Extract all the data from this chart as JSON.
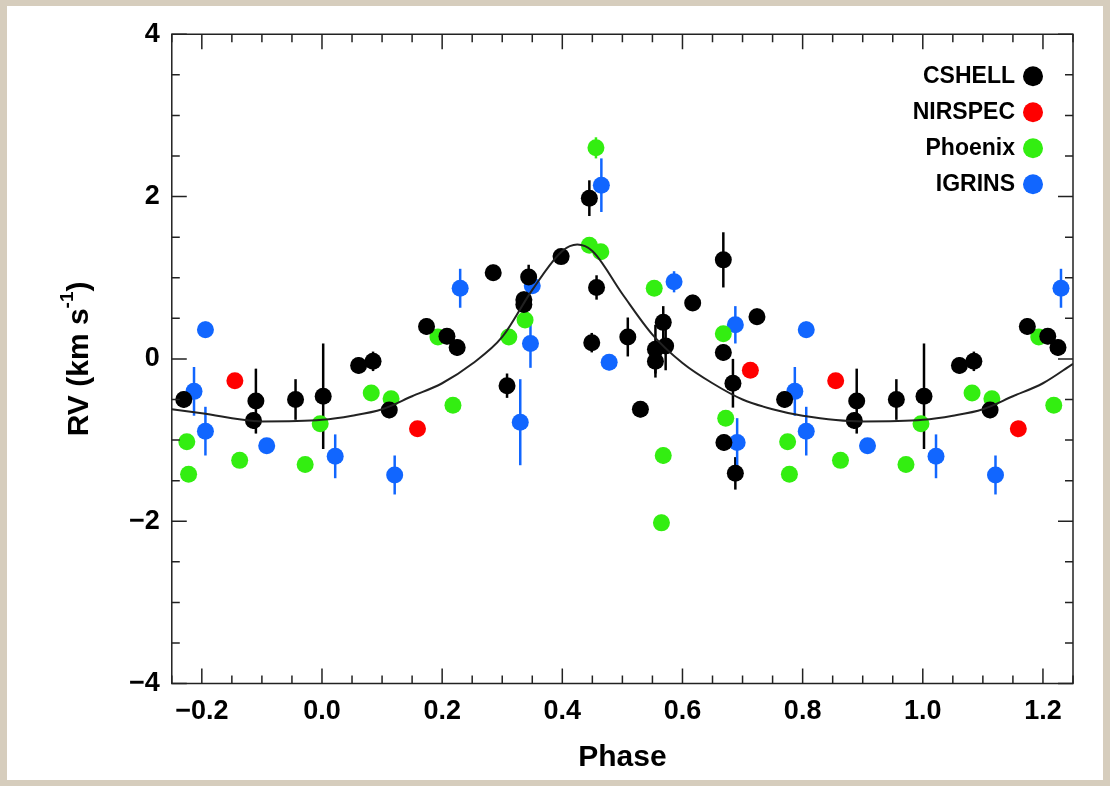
{
  "chart_data": {
    "type": "scatter",
    "xlabel": "Phase",
    "ylabel": "RV (km s$^{-1}$)",
    "xlim": [
      -0.25,
      1.25
    ],
    "xticks": [
      {
        "value": -0.25,
        "label": null
      },
      {
        "value": -0.2,
        "label": "−0.2"
      },
      {
        "value": -0.15,
        "label": null
      },
      {
        "value": -0.1,
        "label": null
      },
      {
        "value": -0.05,
        "label": null
      },
      {
        "value": 0,
        "label": "0.0"
      },
      {
        "value": 0.05,
        "label": null
      },
      {
        "value": 0.1,
        "label": null
      },
      {
        "value": 0.15,
        "label": null
      },
      {
        "value": 0.2,
        "label": "0.2"
      },
      {
        "value": 0.25,
        "label": null
      },
      {
        "value": 0.3,
        "label": null
      },
      {
        "value": 0.35,
        "label": null
      },
      {
        "value": 0.4,
        "label": "0.4"
      },
      {
        "value": 0.45,
        "label": null
      },
      {
        "value": 0.5,
        "label": null
      },
      {
        "value": 0.55,
        "label": null
      },
      {
        "value": 0.6,
        "label": "0.6"
      },
      {
        "value": 0.65,
        "label": null
      },
      {
        "value": 0.7,
        "label": null
      },
      {
        "value": 0.75,
        "label": null
      },
      {
        "value": 0.8,
        "label": "0.8"
      },
      {
        "value": 0.85,
        "label": null
      },
      {
        "value": 0.9,
        "label": null
      },
      {
        "value": 0.95,
        "label": null
      },
      {
        "value": 1,
        "label": "1.0"
      },
      {
        "value": 1.05,
        "label": null
      },
      {
        "value": 1.1,
        "label": null
      },
      {
        "value": 1.15,
        "label": null
      },
      {
        "value": 1.2,
        "label": "1.2"
      },
      {
        "value": 1.25,
        "label": null
      }
    ],
    "ylim": [
      -4,
      4
    ],
    "yticks": [
      {
        "value": -4,
        "label": "−4"
      },
      {
        "value": -3.5,
        "label": null
      },
      {
        "value": -3,
        "label": null
      },
      {
        "value": -2.5,
        "label": null
      },
      {
        "value": -2,
        "label": "−2"
      },
      {
        "value": -1.5,
        "label": null
      },
      {
        "value": -1,
        "label": null
      },
      {
        "value": -0.5,
        "label": null
      },
      {
        "value": 0,
        "label": "0"
      },
      {
        "value": 0.5,
        "label": null
      },
      {
        "value": 1,
        "label": null
      },
      {
        "value": 1.5,
        "label": null
      },
      {
        "value": 2,
        "label": "2"
      },
      {
        "value": 2.5,
        "label": null
      },
      {
        "value": 3,
        "label": null
      },
      {
        "value": 3.5,
        "label": null
      },
      {
        "value": 4,
        "label": "4"
      }
    ],
    "grid": false,
    "legend": "top right",
    "marker": "circle",
    "series": [
      {
        "name": "CSHELL",
        "color": "#000000",
        "x": [
          -0.23,
          -0.114,
          -0.11,
          -0.044,
          0.002,
          0.061,
          0.085,
          0.112,
          0.174,
          0.208,
          0.225,
          0.285,
          0.308,
          0.336,
          0.336,
          0.344,
          0.398,
          0.445,
          0.449,
          0.457,
          0.509,
          0.53,
          0.555,
          0.555,
          0.568,
          0.572,
          0.617,
          0.668,
          0.668,
          0.669,
          0.684,
          0.688,
          0.724,
          0.77,
          0.886,
          0.89,
          0.956,
          1.002,
          1.061,
          1.085,
          1.112,
          1.174,
          1.208,
          1.225
        ],
        "values": [
          -0.5,
          -0.76,
          -0.52,
          -0.5,
          -0.46,
          -0.08,
          -0.03,
          -0.63,
          0.4,
          0.28,
          0.14,
          1.06,
          -0.33,
          0.73,
          0.67,
          1.01,
          1.26,
          1.98,
          0.2,
          0.88,
          0.27,
          -0.62,
          0.12,
          -0.03,
          0.45,
          0.16,
          0.69,
          1.22,
          0.08,
          -1.03,
          -0.3,
          -1.41,
          0.52,
          -0.5,
          -0.76,
          -0.52,
          -0.5,
          -0.46,
          -0.08,
          -0.03,
          -0.63,
          0.4,
          0.28,
          0.14
        ],
        "errors": [
          0.1,
          0.1,
          0.4,
          0.25,
          0.65,
          0.1,
          0.12,
          0.1,
          0.1,
          0.1,
          0.1,
          0.1,
          0.15,
          0.1,
          0.1,
          0.15,
          0.08,
          0.22,
          0.12,
          0.15,
          0.24,
          0.1,
          0.3,
          0.2,
          0.2,
          0.3,
          0.1,
          0.34,
          0.1,
          0.1,
          0.3,
          0.2,
          0.1,
          0.1,
          0.1,
          0.4,
          0.25,
          0.65,
          0.1,
          0.12,
          0.1,
          0.1,
          0.1,
          0.1
        ]
      },
      {
        "name": "NIRSPEC",
        "color": "#ff0000",
        "x": [
          -0.145,
          0.159,
          0.713,
          0.855,
          1.159
        ],
        "values": [
          -0.27,
          -0.86,
          -0.14,
          -0.27,
          -0.86
        ]
      },
      {
        "name": "Phoenix",
        "color": "#33ee11",
        "x": [
          -0.225,
          -0.222,
          -0.137,
          -0.028,
          -0.003,
          0.082,
          0.115,
          0.193,
          0.218,
          0.311,
          0.338,
          0.445,
          0.456,
          0.464,
          0.553,
          0.565,
          0.568,
          0.668,
          0.672,
          0.775,
          0.778,
          0.863,
          0.972,
          0.997,
          1.082,
          1.115,
          1.193,
          1.218
        ],
        "values": [
          -1.02,
          -1.42,
          -1.25,
          -1.3,
          -0.8,
          -0.42,
          -0.49,
          0.27,
          -0.57,
          0.27,
          0.48,
          1.4,
          2.6,
          1.32,
          0.87,
          -2.02,
          -1.19,
          0.31,
          -0.73,
          -1.02,
          -1.42,
          -1.25,
          -1.3,
          -0.8,
          -0.42,
          -0.49,
          0.27,
          -0.57
        ],
        "errors": [
          null,
          null,
          null,
          null,
          null,
          null,
          null,
          null,
          null,
          null,
          null,
          null,
          0.13,
          null,
          null,
          0.1,
          0.1,
          null,
          null,
          null,
          null,
          null,
          null,
          null,
          null,
          null,
          null,
          null
        ]
      },
      {
        "name": "IGRINS",
        "color": "#1166ff",
        "x": [
          -0.213,
          -0.194,
          -0.194,
          -0.092,
          0.022,
          0.121,
          0.23,
          0.33,
          0.347,
          0.35,
          0.465,
          0.478,
          0.586,
          0.688,
          0.691,
          0.787,
          0.806,
          0.806,
          0.908,
          1.022,
          1.121,
          1.23
        ],
        "values": [
          -0.4,
          0.36,
          -0.89,
          -1.07,
          -1.2,
          -1.43,
          0.87,
          -0.78,
          0.19,
          0.9,
          2.14,
          -0.04,
          0.95,
          0.42,
          -1.03,
          -0.4,
          0.36,
          -0.89,
          -1.07,
          -1.2,
          -1.43,
          0.87
        ],
        "errors": [
          0.3,
          0.1,
          0.3,
          0.08,
          0.27,
          0.24,
          0.24,
          0.53,
          0.3,
          null,
          0.33,
          0.1,
          0.13,
          0.23,
          0.3,
          0.3,
          0.1,
          0.3,
          0.08,
          0.27,
          0.24,
          0.24
        ]
      },
      {
        "type": "line",
        "color": "#222222",
        "marker": "none",
        "x": [
          -0.25,
          -0.2,
          -0.1,
          0,
          0.05,
          0.1,
          0.15,
          0.2,
          0.25,
          0.3,
          0.35,
          0.4,
          0.425,
          0.45,
          0.5,
          0.55,
          0.6,
          0.65,
          0.7,
          0.75,
          0.8,
          0.9,
          1,
          1.05,
          1.1,
          1.15,
          1.2,
          1.25
        ],
        "values": [
          -0.62,
          -0.67,
          -0.77,
          -0.75,
          -0.7,
          -0.62,
          -0.46,
          -0.3,
          -0.06,
          0.27,
          0.85,
          1.33,
          1.41,
          1.33,
          0.8,
          0.3,
          -0.05,
          -0.3,
          -0.5,
          -0.62,
          -0.7,
          -0.77,
          -0.75,
          -0.7,
          -0.62,
          -0.46,
          -0.3,
          -0.06
        ]
      }
    ]
  }
}
